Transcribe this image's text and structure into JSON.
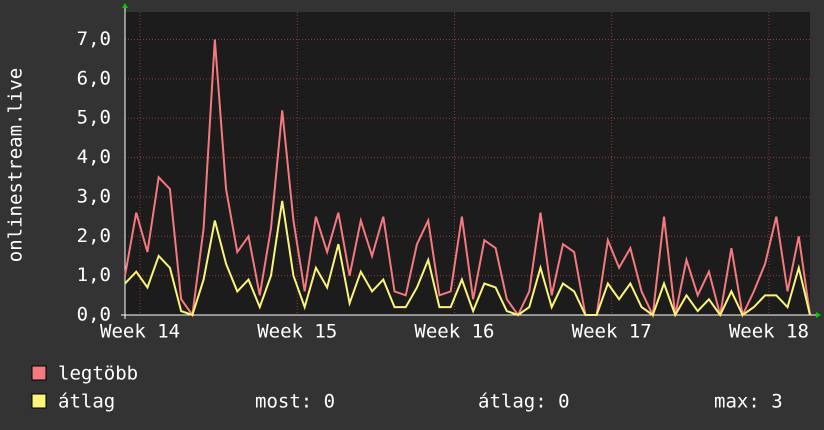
{
  "chart_data": {
    "type": "line",
    "y_label": "onlinestream.live",
    "x": [
      0,
      0.5,
      1,
      1.5,
      2,
      2.5,
      3,
      3.5,
      4,
      4.5,
      5,
      5.5,
      6,
      6.5,
      7,
      7.5,
      8,
      8.5,
      9,
      9.5,
      10,
      10.5,
      11,
      11.5,
      12,
      12.5,
      13,
      13.5,
      14,
      14.5,
      15,
      15.5,
      16,
      16.5,
      17,
      17.5,
      18,
      18.5,
      19,
      19.5,
      20,
      20.5,
      21,
      21.5,
      22,
      22.5,
      23,
      23.5,
      24,
      24.5,
      25,
      25.5,
      26,
      26.5,
      27,
      27.5,
      28,
      28.5,
      29,
      29.5,
      30,
      30.5
    ],
    "series": [
      {
        "name": "legtöbb",
        "color": "#f47a7f",
        "values": [
          1.0,
          2.6,
          1.6,
          3.5,
          3.2,
          0.4,
          0,
          2.2,
          7.0,
          3.2,
          1.6,
          2.0,
          0.5,
          2.2,
          5.2,
          2.4,
          0.6,
          2.5,
          1.6,
          2.6,
          1.0,
          2.4,
          1.5,
          2.5,
          0.6,
          0.5,
          1.8,
          2.4,
          0.5,
          0.6,
          2.5,
          0.4,
          1.9,
          1.7,
          0.4,
          0,
          0.6,
          2.6,
          0.5,
          1.8,
          1.6,
          0,
          0,
          1.9,
          1.2,
          1.7,
          0.6,
          0,
          2.5,
          0,
          1.4,
          0.5,
          1.1,
          0,
          1.7,
          0,
          0.6,
          1.3,
          2.5,
          0.6,
          2.0,
          0
        ]
      },
      {
        "name": "átlag",
        "color": "#fbf47a",
        "values": [
          0.8,
          1.1,
          0.7,
          1.5,
          1.2,
          0.1,
          0,
          0.9,
          2.4,
          1.3,
          0.6,
          0.9,
          0.2,
          1.0,
          2.9,
          1.0,
          0.2,
          1.2,
          0.7,
          1.8,
          0.3,
          1.1,
          0.6,
          0.9,
          0.2,
          0.2,
          0.7,
          1.4,
          0.2,
          0.2,
          0.9,
          0.1,
          0.8,
          0.7,
          0.1,
          0,
          0.2,
          1.2,
          0.2,
          0.8,
          0.6,
          0,
          0,
          0.8,
          0.4,
          0.8,
          0.2,
          0,
          0.8,
          0,
          0.5,
          0.1,
          0.4,
          0,
          0.6,
          0,
          0.2,
          0.5,
          0.5,
          0.2,
          1.2,
          0
        ]
      }
    ],
    "xlim": [
      0,
      30.5
    ],
    "xticks": [
      {
        "value": 0.67,
        "label": "Week 14"
      },
      {
        "value": 7.67,
        "label": "Week 15"
      },
      {
        "value": 14.67,
        "label": "Week 16"
      },
      {
        "value": 21.67,
        "label": "Week 17"
      },
      {
        "value": 28.67,
        "label": "Week 18"
      }
    ],
    "ylim": [
      0,
      7.7
    ],
    "yticks": [
      {
        "value": 0,
        "label": "0,0"
      },
      {
        "value": 1,
        "label": "1,0"
      },
      {
        "value": 2,
        "label": "2,0"
      },
      {
        "value": 3,
        "label": "3,0"
      },
      {
        "value": 4,
        "label": "4,0"
      },
      {
        "value": 5,
        "label": "5,0"
      },
      {
        "value": 6,
        "label": "6,0"
      },
      {
        "value": 7,
        "label": "7,0"
      }
    ],
    "grid": true,
    "stats": [
      "most: 0",
      "átlag: 0",
      "max: 3"
    ]
  }
}
